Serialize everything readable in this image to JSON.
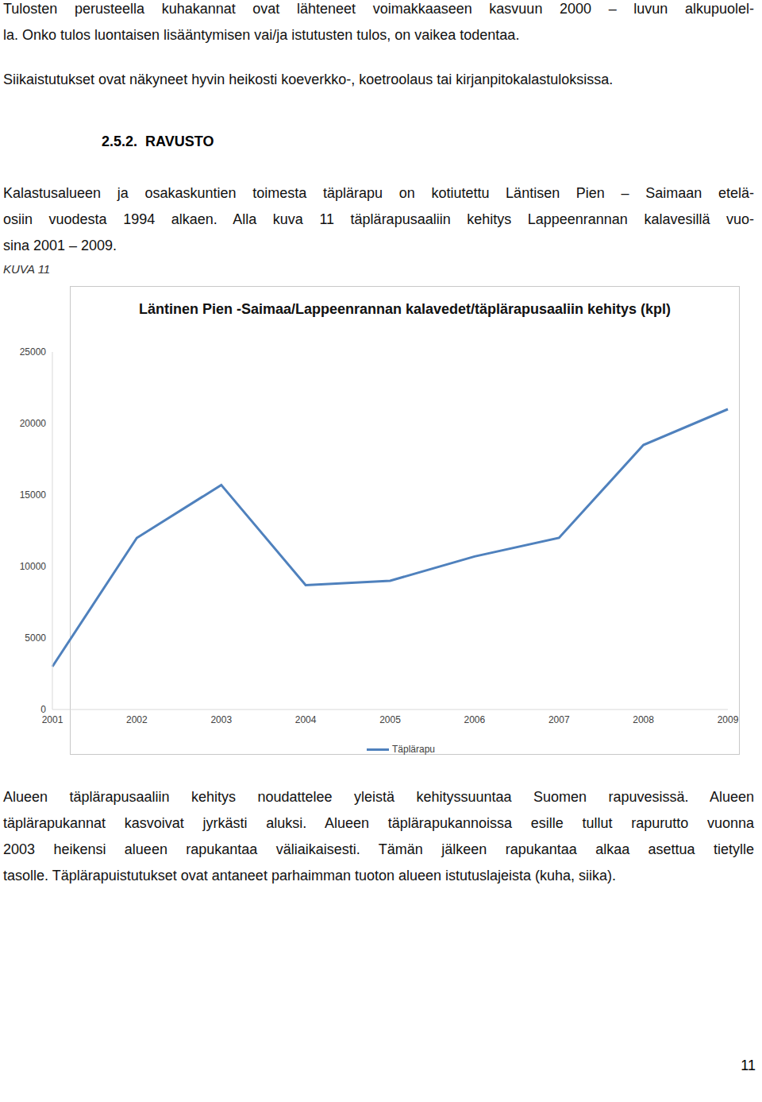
{
  "paragraphs_top": [
    [
      "Tulosten perusteella kuhakannat ovat lähteneet voimakkaaseen kasvuun 2000 – luvun alkupuolel-",
      "la. Onko tulos luontaisen lisääntymisen vai/ja istutusten tulos, on vaikea todentaa."
    ],
    [
      "Siikaistutukset ovat näkyneet hyvin heikosti koeverkko-, koetroolaus tai kirjanpitokalastuloksissa."
    ]
  ],
  "heading": {
    "number": "2.5.2.",
    "title": "RAVUSTO"
  },
  "intro": [
    "Kalastusalueen ja osakaskuntien toimesta täplärapu on kotiutettu Läntisen Pien – Saimaan etelä-",
    "osiin vuodesta 1994 alkaen. Alla kuva 11 täplärapusaaliin kehitys Lappeenrannan kalavesillä vuo-",
    "sina 2001 – 2009."
  ],
  "figure_label": "KUVA 11",
  "chart_data": {
    "type": "line",
    "title": "Läntinen Pien -Saimaa/Lappeenrannan kalavedet/täplärapusaaliin kehitys (kpl)",
    "categories": [
      "2001",
      "2002",
      "2003",
      "2004",
      "2005",
      "2006",
      "2007",
      "2008",
      "2009"
    ],
    "series": [
      {
        "name": "Täplärapu",
        "color": "#4f81bd",
        "values": [
          3000,
          12000,
          15700,
          8700,
          9000,
          10700,
          12000,
          18500,
          21000
        ]
      }
    ],
    "ylim": [
      0,
      25000
    ],
    "yticks": [
      0,
      5000,
      10000,
      15000,
      20000,
      25000
    ],
    "grid": false,
    "legend": "bottom"
  },
  "paragraphs_bottom": [
    [
      "Alueen täplärapusaaliin kehitys noudattelee yleistä kehityssuuntaa Suomen rapuvesissä. Alueen",
      "täplärapukannat kasvoivat jyrkästi aluksi. Alueen täplärapukannoissa esille tullut rapurutto vuonna",
      "2003 heikensi alueen rapukantaa väliaikaisesti. Tämän jälkeen rapukantaa alkaa asettua tietylle",
      "tasolle. Täplärapuistutukset ovat antaneet parhaimman tuoton alueen istutuslajeista (kuha, siika)."
    ]
  ],
  "page_number": "11"
}
